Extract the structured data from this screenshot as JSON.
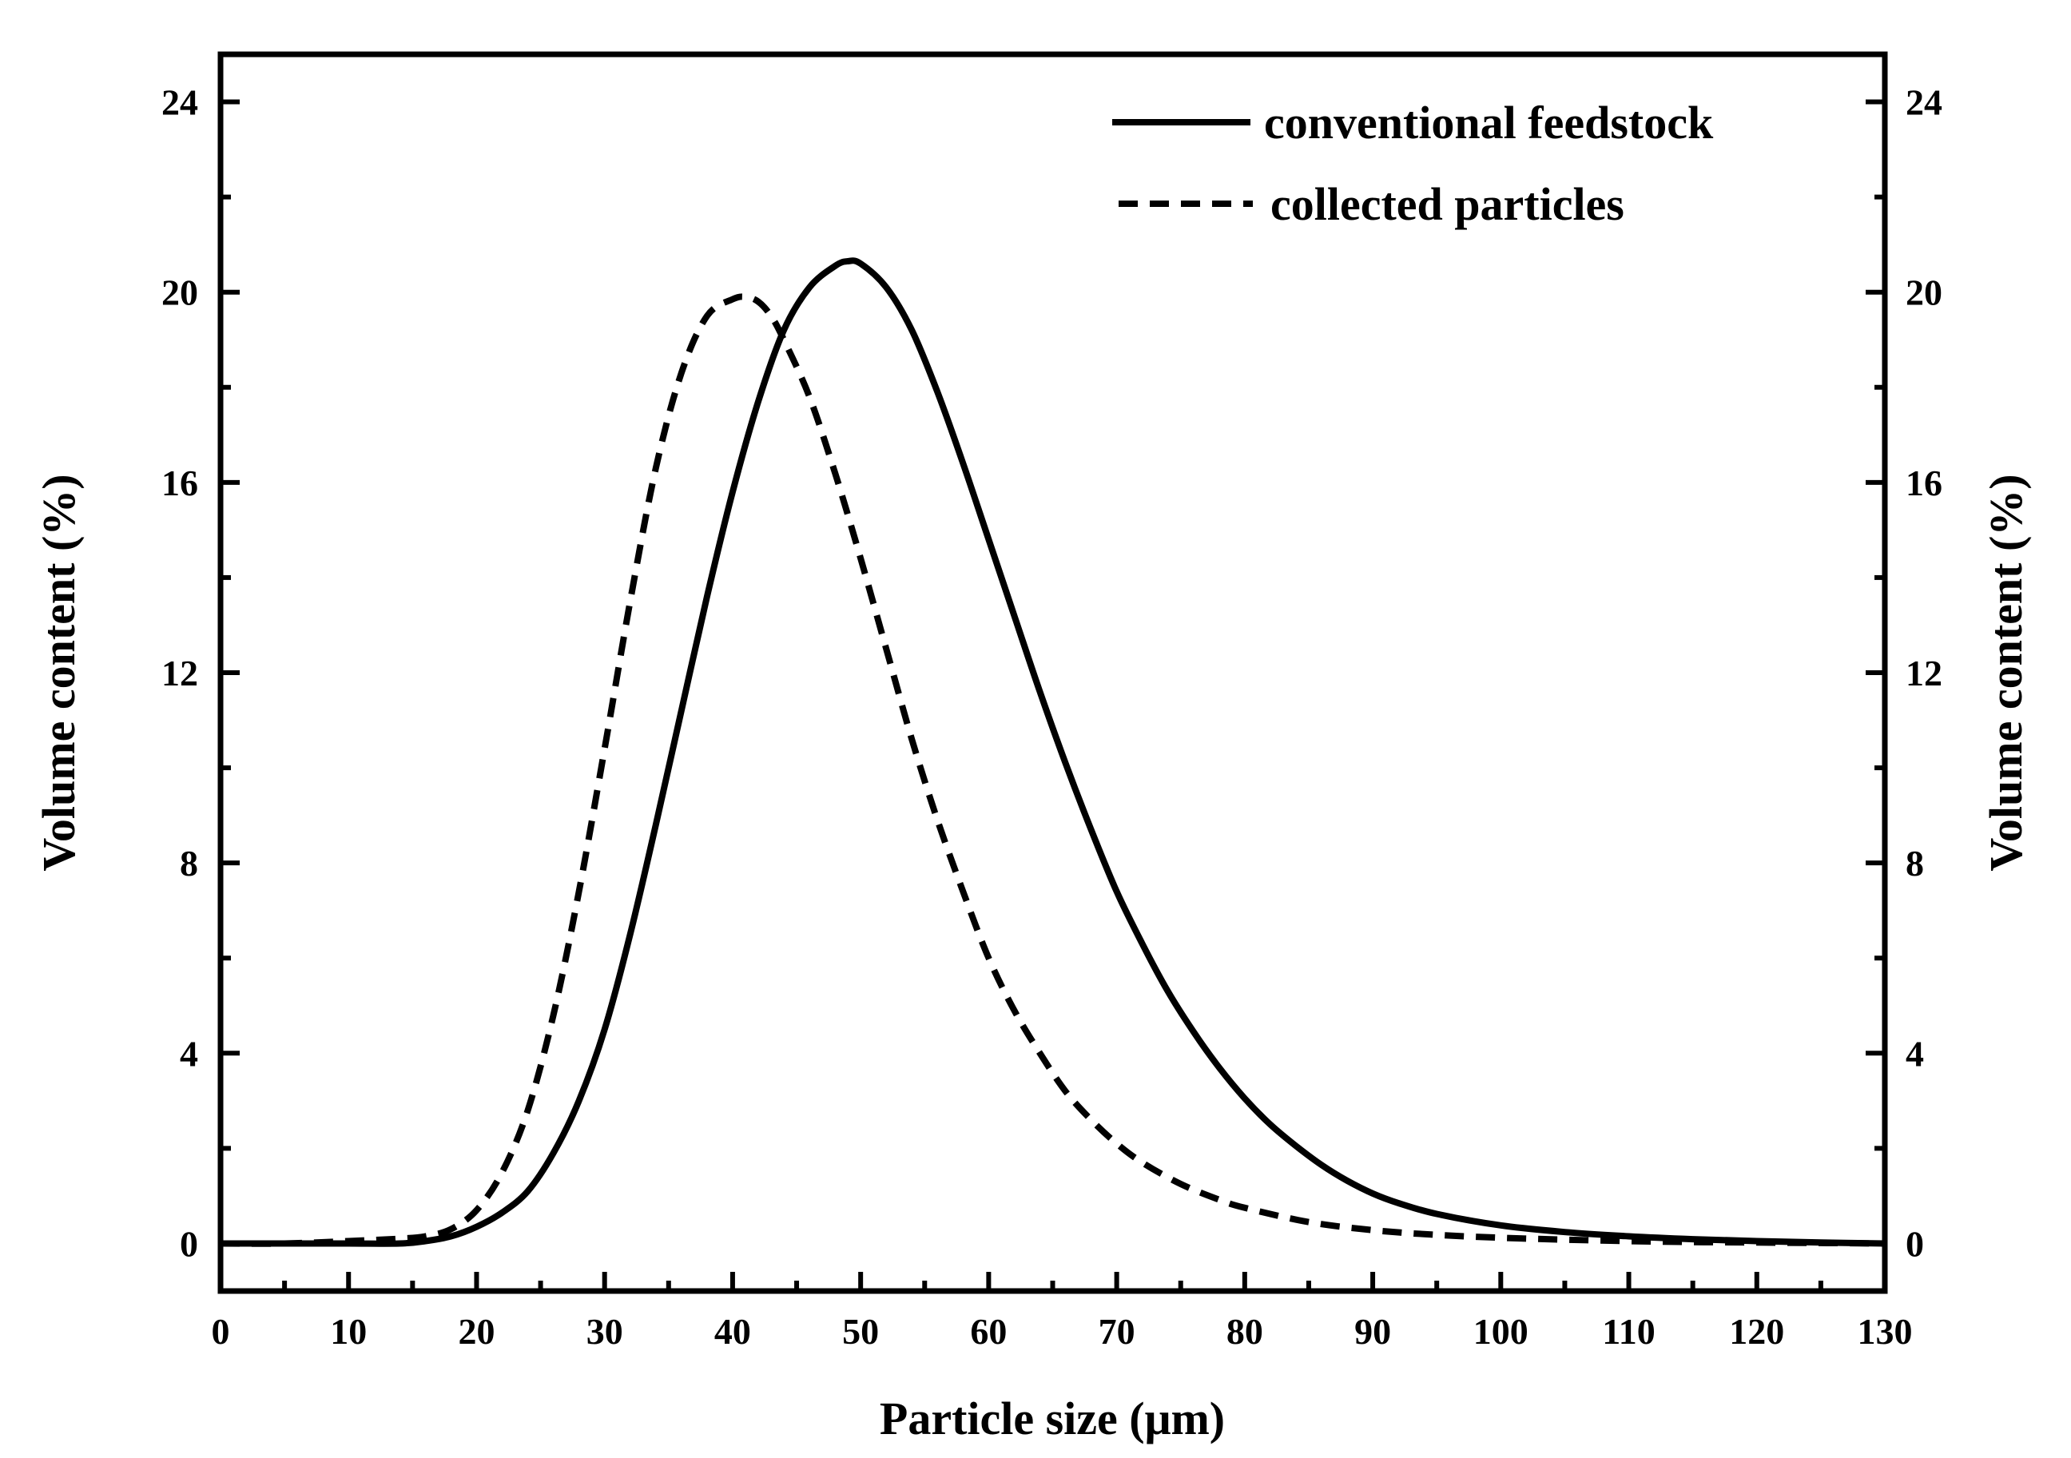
{
  "chart_data": {
    "type": "line",
    "title": "",
    "xlabel": "Particle size (μm)",
    "ylabel": "Volume content (%)",
    "ylabel_right": "Volume content (%)",
    "xlim": [
      0,
      130
    ],
    "ylim": [
      -1,
      25
    ],
    "x_ticks": [
      0,
      10,
      20,
      30,
      40,
      50,
      60,
      70,
      80,
      90,
      100,
      110,
      120,
      130
    ],
    "x_tick_labels": [
      "0",
      "10",
      "20",
      "30",
      "40",
      "50",
      "60",
      "70",
      "80",
      "90",
      "100",
      "110",
      "120",
      "130"
    ],
    "y_ticks": [
      0,
      4,
      8,
      12,
      16,
      20,
      24
    ],
    "y_tick_labels": [
      "0",
      "4",
      "8",
      "12",
      "16",
      "20",
      "24"
    ],
    "legend_position": "top-right",
    "grid": false,
    "series": [
      {
        "name": "conventional feedstock",
        "style": "solid",
        "color": "#000000",
        "x": [
          0,
          5,
          10,
          14,
          16,
          18,
          20,
          22,
          24,
          26,
          28,
          30,
          32,
          34,
          36,
          38,
          40,
          42,
          44,
          46,
          48,
          49,
          50,
          52,
          54,
          56,
          58,
          60,
          62,
          64,
          66,
          68,
          70,
          72,
          74,
          76,
          78,
          80,
          82,
          84,
          86,
          88,
          90,
          92,
          95,
          100,
          105,
          110,
          115,
          120,
          125,
          130
        ],
        "y": [
          0,
          0,
          0,
          0,
          0.05,
          0.15,
          0.35,
          0.65,
          1.1,
          1.9,
          3.0,
          4.5,
          6.5,
          8.8,
          11.2,
          13.6,
          15.8,
          17.7,
          19.2,
          20.1,
          20.55,
          20.65,
          20.6,
          20.1,
          19.2,
          17.9,
          16.4,
          14.8,
          13.2,
          11.6,
          10.1,
          8.7,
          7.4,
          6.3,
          5.3,
          4.45,
          3.7,
          3.05,
          2.5,
          2.05,
          1.65,
          1.32,
          1.05,
          0.85,
          0.62,
          0.38,
          0.24,
          0.15,
          0.09,
          0.05,
          0.02,
          0
        ]
      },
      {
        "name": "collected particles",
        "style": "dashed",
        "color": "#000000",
        "x": [
          0,
          5,
          10,
          14,
          16,
          18,
          20,
          22,
          24,
          26,
          28,
          30,
          32,
          34,
          36,
          38,
          40,
          41,
          42,
          43,
          44,
          46,
          48,
          50,
          52,
          54,
          56,
          58,
          60,
          62,
          64,
          66,
          68,
          70,
          72,
          75,
          78,
          80,
          85,
          90,
          95,
          100,
          105,
          110,
          115,
          120,
          125,
          130
        ],
        "y": [
          0,
          0,
          0.05,
          0.1,
          0.15,
          0.3,
          0.7,
          1.5,
          2.8,
          4.8,
          7.4,
          10.4,
          13.5,
          16.3,
          18.3,
          19.5,
          19.85,
          19.9,
          19.8,
          19.5,
          19.0,
          17.8,
          16.2,
          14.4,
          12.5,
          10.6,
          8.9,
          7.4,
          6.0,
          4.9,
          4.0,
          3.2,
          2.6,
          2.1,
          1.7,
          1.25,
          0.92,
          0.75,
          0.45,
          0.28,
          0.18,
          0.12,
          0.08,
          0.05,
          0.03,
          0.02,
          0.01,
          0
        ]
      }
    ]
  }
}
